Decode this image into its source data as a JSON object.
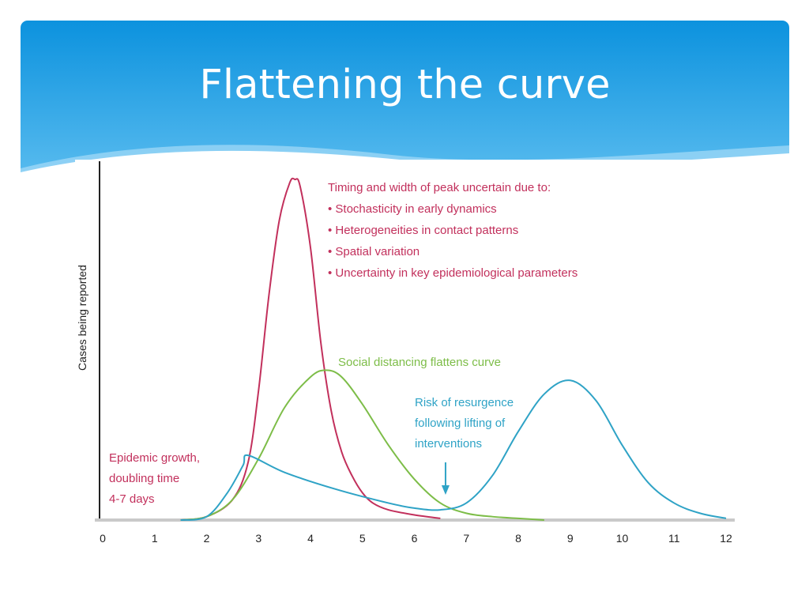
{
  "slide": {
    "title": "Flattening the curve",
    "colors": {
      "header_top": "#0c92de",
      "header_bottom": "#6cc6f3",
      "wave": "#bfe6fb"
    }
  },
  "chart_data": {
    "type": "line",
    "title": "",
    "xlabel": "",
    "ylabel": "Cases being reported",
    "xlim": [
      0,
      12
    ],
    "ylim": [
      0,
      100
    ],
    "x_ticks": [
      "0",
      "1",
      "2",
      "3",
      "4",
      "5",
      "6",
      "7",
      "8",
      "9",
      "10",
      "11",
      "12"
    ],
    "series": [
      {
        "color": "#c2305c",
        "x": [
          1.5,
          2.0,
          2.5,
          2.8,
          3.0,
          3.2,
          3.4,
          3.6,
          3.7,
          3.8,
          4.0,
          4.2,
          4.4,
          4.6,
          4.8,
          5.0,
          5.2,
          5.5,
          6.0,
          6.5
        ],
        "values": [
          0,
          1,
          6,
          17,
          38,
          66,
          88,
          99,
          100,
          98,
          80,
          52,
          32,
          20,
          13,
          8,
          5,
          3,
          1.5,
          0.5
        ]
      },
      {
        "color": "#7dbd48",
        "x": [
          1.5,
          2.0,
          2.5,
          3.0,
          3.5,
          4.0,
          4.3,
          4.6,
          5.0,
          5.5,
          6.0,
          6.5,
          7.0,
          7.5,
          8.0,
          8.5
        ],
        "values": [
          0,
          1,
          6,
          18,
          33,
          42,
          44,
          42,
          34,
          22,
          12,
          5,
          2,
          1,
          0.5,
          0
        ]
      },
      {
        "color": "#2fa3c6",
        "x": [
          1.5,
          2.0,
          2.4,
          2.7,
          2.8,
          3.5,
          4.5,
          5.5,
          6.0,
          6.5,
          7.0,
          7.5,
          8.0,
          8.5,
          9.0,
          9.5,
          10.0,
          10.5,
          11.0,
          11.5,
          12.0
        ],
        "values": [
          0,
          1,
          8,
          16,
          19,
          14,
          9,
          5,
          3.5,
          3,
          5,
          13,
          26,
          37,
          41,
          35,
          22,
          11,
          5,
          2,
          0.5
        ]
      }
    ],
    "annotations": [
      {
        "text": "Timing and width of peak uncertain due to:",
        "color": "#c2305c"
      },
      {
        "text": "• Stochasticity in early dynamics",
        "color": "#c2305c"
      },
      {
        "text": "• Heterogeneities in contact patterns",
        "color": "#c2305c"
      },
      {
        "text": "• Spatial variation",
        "color": "#c2305c"
      },
      {
        "text": "• Uncertainty in key epidemiological parameters",
        "color": "#c2305c"
      },
      {
        "text": "Social distancing flattens curve",
        "color": "#7dbd48"
      },
      {
        "text": "Risk of resurgence",
        "color": "#2fa3c6"
      },
      {
        "text": "following lifting of",
        "color": "#2fa3c6"
      },
      {
        "text": "interventions",
        "color": "#2fa3c6"
      },
      {
        "text": "Epidemic growth,",
        "color": "#c2305c"
      },
      {
        "text": "doubling time",
        "color": "#c2305c"
      },
      {
        "text": "4-7 days",
        "color": "#c2305c"
      }
    ],
    "arrow_at_x": 6.6,
    "grid": false,
    "legend": "none"
  }
}
